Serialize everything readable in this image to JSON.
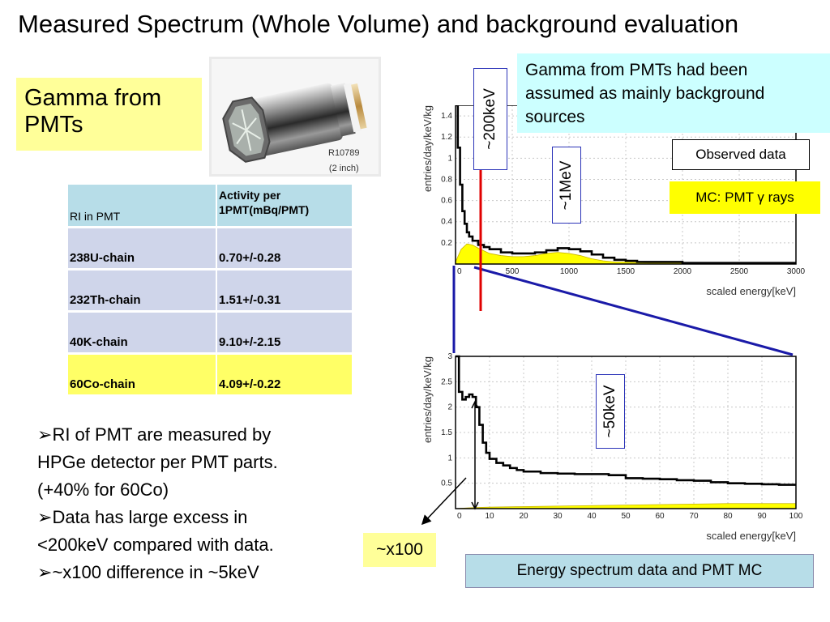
{
  "title": "Measured Spectrum (Whole Volume) and background evaluation",
  "gamma_box": {
    "line1": "Gamma from",
    "line2": "PMTs"
  },
  "pmt_photo": {
    "model": "R10789",
    "size": "(2 inch)"
  },
  "table": {
    "header": {
      "col1": "RI in PMT",
      "col2_line1": "Activity per",
      "col2_line2": "1PMT(mBq/PMT)"
    },
    "rows": [
      {
        "ri": "238U-chain",
        "activity": "0.70+/-0.28"
      },
      {
        "ri": "232Th-chain",
        "activity": "1.51+/-0.31"
      },
      {
        "ri": "40K-chain",
        "activity": "9.10+/-2.15"
      },
      {
        "ri": "60Co-chain",
        "activity": "4.09+/-0.22"
      }
    ]
  },
  "bullets": {
    "b1_line1": "RI of PMT are measured by",
    "b1_line2": "HPGe detector per PMT parts.",
    "b1_line3": "(+40% for 60Co)",
    "b2_line1": "Data has large excess in",
    "b2_line2": "<200keV compared with data.",
    "b3_line1": "~x100 difference in ~5keV"
  },
  "x100_label": "~x100",
  "note_box": {
    "line1": "Gamma from PMTs had been",
    "line2": "assumed as mainly background",
    "line3": "sources"
  },
  "legend": {
    "observed": "Observed data",
    "mc": "MC: PMT γ rays"
  },
  "markers": {
    "kev200": "~200keV",
    "mev1": "~1MeV",
    "kev50": "~50keV"
  },
  "caption": "Energy spectrum data and PMT MC",
  "colors": {
    "highlight_yellow": "#ffff00",
    "marker_red": "#e00000",
    "zoom_blue": "#1a1aa8",
    "note_cyan": "#ccffff"
  },
  "chart_data": [
    {
      "type": "line",
      "xlabel": "scaled energy[keV]",
      "ylabel": "entries/day/keV/kg",
      "xlim": [
        0,
        3000
      ],
      "ylim": [
        0,
        1.5
      ],
      "xticks": [
        0,
        500,
        1000,
        1500,
        2000,
        2500,
        3000
      ],
      "yticks": [
        0.2,
        0.4,
        0.6,
        0.8,
        1,
        1.2,
        1.4
      ],
      "ytick_labels": [
        "0.2",
        "0.4",
        "0.6",
        "0.8",
        "1",
        "1.2",
        "1.4"
      ],
      "series": [
        {
          "kind": "data",
          "x": [
            0,
            20,
            40,
            60,
            80,
            100,
            120,
            150,
            200,
            250,
            300,
            400,
            500,
            600,
            700,
            800,
            900,
            1000,
            1100,
            1200,
            1300,
            1400,
            1500,
            1600,
            1800,
            2000,
            2500,
            3000
          ],
          "y": [
            1.5,
            1.1,
            0.75,
            0.5,
            0.38,
            0.3,
            0.26,
            0.22,
            0.18,
            0.16,
            0.14,
            0.11,
            0.1,
            0.1,
            0.11,
            0.13,
            0.15,
            0.14,
            0.12,
            0.09,
            0.06,
            0.04,
            0.03,
            0.02,
            0.02,
            0.01,
            0.01,
            0.01
          ]
        },
        {
          "kind": "mc",
          "x": [
            0,
            50,
            100,
            150,
            200,
            300,
            400,
            500,
            600,
            700,
            800,
            900,
            1000,
            1100,
            1200,
            1300,
            1400,
            1500,
            1700,
            2000,
            2500,
            3000
          ],
          "y": [
            0.02,
            0.14,
            0.19,
            0.18,
            0.15,
            0.1,
            0.08,
            0.07,
            0.07,
            0.08,
            0.1,
            0.11,
            0.1,
            0.08,
            0.05,
            0.03,
            0.02,
            0.02,
            0.01,
            0.01,
            0.01,
            0.005
          ]
        }
      ]
    },
    {
      "type": "line",
      "xlabel": "scaled energy[keV]",
      "ylabel": "entries/day/keV/kg",
      "xlim": [
        0,
        100
      ],
      "ylim": [
        0,
        3
      ],
      "xticks": [
        0,
        10,
        20,
        30,
        40,
        50,
        60,
        70,
        80,
        90,
        100
      ],
      "yticks": [
        0.5,
        1,
        1.5,
        2,
        2.5,
        3
      ],
      "ytick_labels": [
        "0.5",
        "1",
        "1.5",
        "2",
        "2.5",
        "3"
      ],
      "series": [
        {
          "kind": "data",
          "x": [
            0,
            1,
            2,
            3,
            4,
            5,
            6,
            7,
            8,
            9,
            10,
            12,
            14,
            16,
            18,
            20,
            25,
            30,
            35,
            40,
            45,
            50,
            55,
            60,
            65,
            70,
            75,
            80,
            85,
            90,
            95,
            100
          ],
          "y": [
            3.0,
            2.3,
            2.15,
            2.2,
            2.25,
            2.2,
            2.0,
            1.65,
            1.3,
            1.1,
            0.98,
            0.9,
            0.85,
            0.8,
            0.76,
            0.73,
            0.7,
            0.69,
            0.68,
            0.68,
            0.66,
            0.6,
            0.59,
            0.58,
            0.56,
            0.55,
            0.52,
            0.5,
            0.49,
            0.48,
            0.47,
            0.47
          ]
        },
        {
          "kind": "mc",
          "x": [
            0,
            5,
            10,
            20,
            30,
            40,
            50,
            60,
            70,
            80,
            90,
            100
          ],
          "y": [
            0.0,
            0.02,
            0.03,
            0.04,
            0.05,
            0.06,
            0.07,
            0.08,
            0.09,
            0.1,
            0.1,
            0.1
          ]
        }
      ]
    }
  ]
}
